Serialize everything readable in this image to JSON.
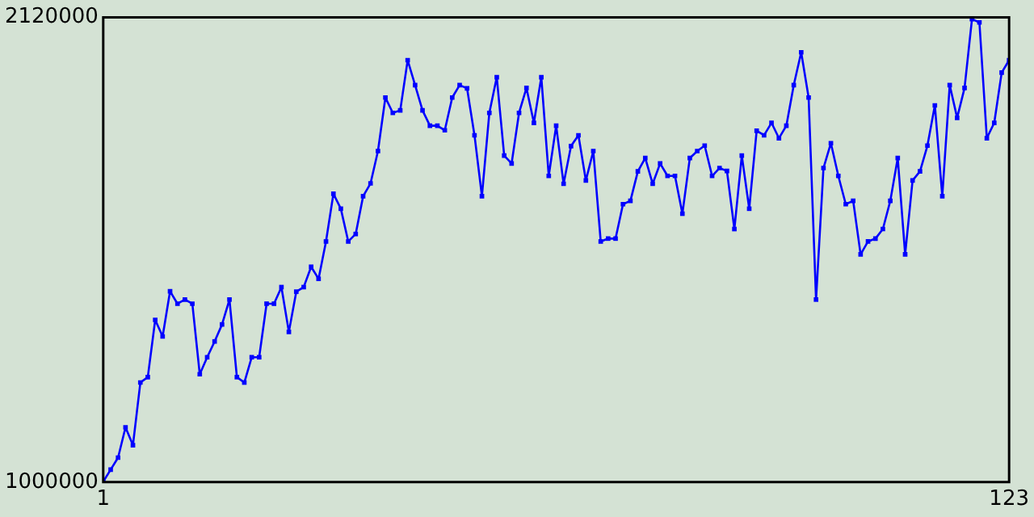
{
  "chart_data": {
    "type": "line",
    "marker": "square",
    "line_style": "solid",
    "x": [
      1,
      2,
      3,
      4,
      5,
      6,
      7,
      8,
      9,
      10,
      11,
      12,
      13,
      14,
      15,
      16,
      17,
      18,
      19,
      20,
      21,
      22,
      23,
      24,
      25,
      26,
      27,
      28,
      29,
      30,
      31,
      32,
      33,
      34,
      35,
      36,
      37,
      38,
      39,
      40,
      41,
      42,
      43,
      44,
      45,
      46,
      47,
      48,
      49,
      50,
      51,
      52,
      53,
      54,
      55,
      56,
      57,
      58,
      59,
      60,
      61,
      62,
      63,
      64,
      65,
      66,
      67,
      68,
      69,
      70,
      71,
      72,
      73,
      74,
      75,
      76,
      77,
      78,
      79,
      80,
      81,
      82,
      83,
      84,
      85,
      86,
      87,
      88,
      89,
      90,
      91,
      92,
      93,
      94,
      95,
      96,
      97,
      98,
      99,
      100,
      101,
      102,
      103,
      104,
      105,
      106,
      107,
      108,
      109,
      110,
      111,
      112,
      113,
      114,
      115,
      116,
      117,
      118,
      119,
      120,
      121,
      122,
      123
    ],
    "series": [
      {
        "color": "#0000ff",
        "values": [
          1001000,
          1030000,
          1059000,
          1132000,
          1089000,
          1240000,
          1253000,
          1391000,
          1351000,
          1460000,
          1430000,
          1440000,
          1430000,
          1260000,
          1301000,
          1339000,
          1380000,
          1440000,
          1253000,
          1240000,
          1301000,
          1301000,
          1430000,
          1430000,
          1470000,
          1362000,
          1459000,
          1470000,
          1519000,
          1490000,
          1580000,
          1695000,
          1659000,
          1580000,
          1598000,
          1689000,
          1720000,
          1798000,
          1927000,
          1890000,
          1896000,
          2017000,
          1957000,
          1896000,
          1859000,
          1859000,
          1848000,
          1927000,
          1957000,
          1949000,
          1836000,
          1689000,
          1890000,
          1976000,
          1787000,
          1768000,
          1890000,
          1950000,
          1866000,
          1976000,
          1738000,
          1859000,
          1719000,
          1810000,
          1836000,
          1727000,
          1798000,
          1580000,
          1587000,
          1587000,
          1670000,
          1678000,
          1749000,
          1781000,
          1719000,
          1768000,
          1738000,
          1738000,
          1647000,
          1781000,
          1798000,
          1811000,
          1738000,
          1757000,
          1750000,
          1610000,
          1787000,
          1659000,
          1847000,
          1836000,
          1866000,
          1829000,
          1859000,
          1957000,
          2036000,
          1927000,
          1440000,
          1757000,
          1817000,
          1738000,
          1670000,
          1678000,
          1549000,
          1580000,
          1587000,
          1610000,
          1678000,
          1781000,
          1549000,
          1727000,
          1749000,
          1811000,
          1908000,
          1689000,
          1957000,
          1878000,
          1950000,
          2116000,
          2108000,
          1829000,
          1866000,
          1987000,
          2017000
        ]
      }
    ],
    "xlim": [
      1,
      123
    ],
    "xticks": [
      1,
      123
    ],
    "ylim": [
      1000000,
      2120000
    ],
    "yticks": [
      1000000,
      2120000
    ]
  }
}
